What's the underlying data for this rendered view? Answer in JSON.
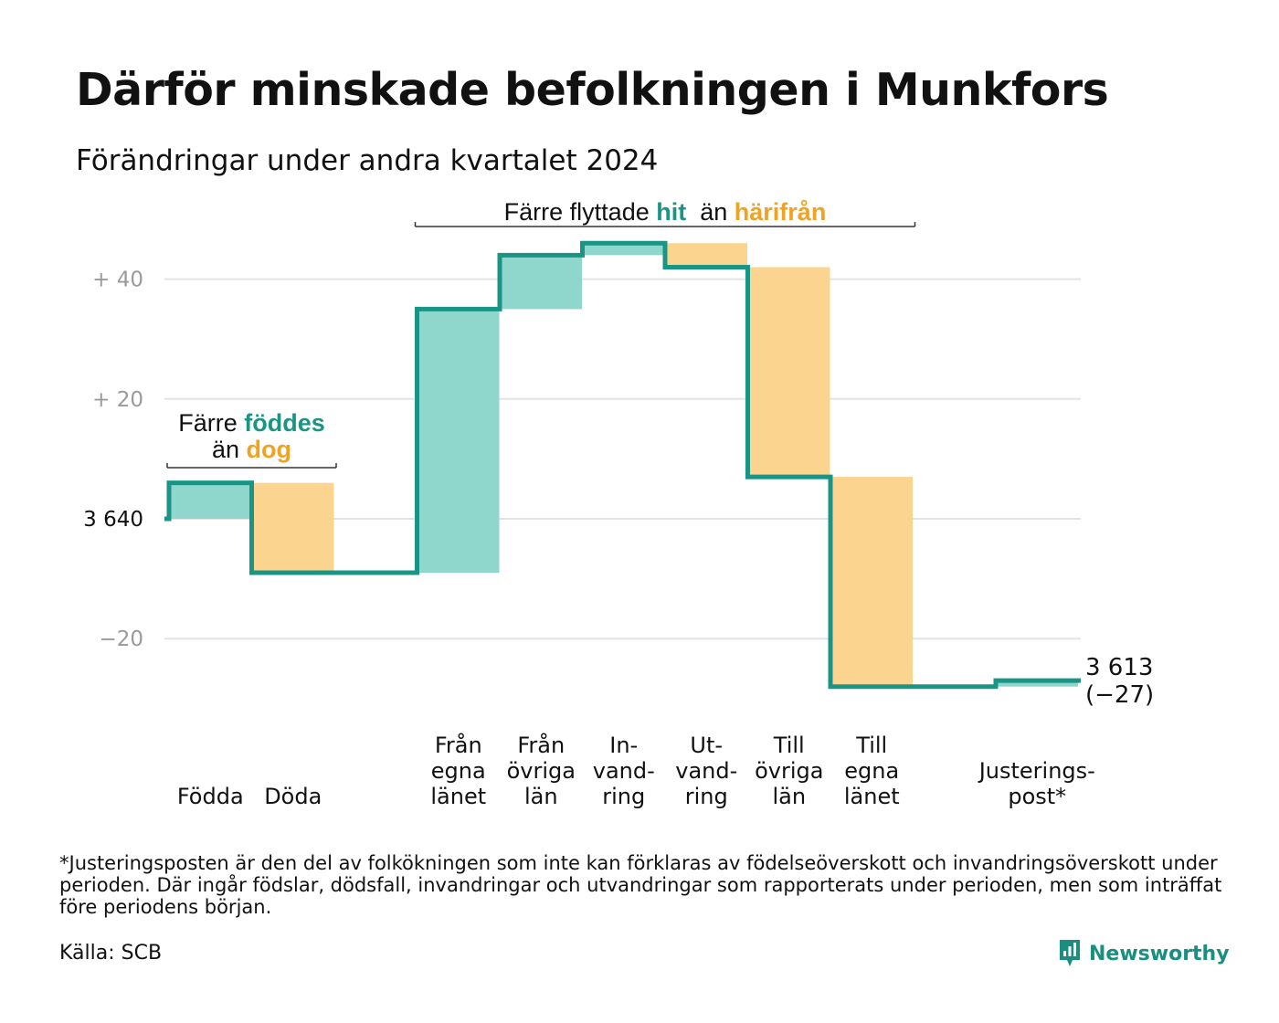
{
  "title": "Därför minskade befolkningen i Munkfors",
  "subtitle": "Förändringar under andra kvartalet 2024",
  "colors": {
    "increase": "#8fd6cc",
    "decrease": "#fbd58f",
    "line": "#1a9585",
    "grid": "#e3e3e3",
    "teal_text": "#1a9585",
    "orange_text": "#f0a322"
  },
  "chart_data": {
    "type": "waterfall",
    "start_value": 3640,
    "end_value": 3613,
    "ylim": [
      -32,
      46
    ],
    "y_ticks": [
      {
        "value": 40,
        "label": "+  40"
      },
      {
        "value": 20,
        "label": "+  20"
      },
      {
        "value": 0,
        "label": "3  640"
      },
      {
        "value": -20,
        "label": "−20"
      }
    ],
    "grid": true,
    "steps": [
      {
        "label": [
          "Födda"
        ],
        "change": 6,
        "direction": "increase"
      },
      {
        "label": [
          "Döda"
        ],
        "change": -15,
        "direction": "decrease"
      },
      {
        "label": [],
        "change": 0,
        "direction": "none"
      },
      {
        "label": [
          "Från",
          "egna",
          "länet"
        ],
        "change": 44,
        "direction": "increase"
      },
      {
        "label": [
          "Från",
          "övriga",
          "län"
        ],
        "change": 9,
        "direction": "increase"
      },
      {
        "label": [
          "In-",
          "vand-",
          "ring"
        ],
        "change": 2,
        "direction": "increase"
      },
      {
        "label": [
          "Ut-",
          "vand-",
          "ring"
        ],
        "change": -4,
        "direction": "decrease"
      },
      {
        "label": [
          "Till",
          "övriga",
          "län"
        ],
        "change": -35,
        "direction": "decrease"
      },
      {
        "label": [
          "Till",
          "egna",
          "länet"
        ],
        "change": -35,
        "direction": "decrease"
      },
      {
        "label": [],
        "change": 0,
        "direction": "none"
      },
      {
        "label": [
          "Justerings-",
          "post*"
        ],
        "change": 1,
        "direction": "increase"
      }
    ],
    "end_label": [
      "3 613",
      "(−27)"
    ],
    "annotations": [
      {
        "parts": [
          {
            "text": "Färre ",
            "style": "plain"
          },
          {
            "text": "föddes",
            "style": "teal"
          }
        ],
        "parts2": [
          {
            "text": "än ",
            "style": "plain"
          },
          {
            "text": "dog",
            "style": "orange"
          }
        ],
        "from_step": 0,
        "to_step": 1
      },
      {
        "parts": [
          {
            "text": "Färre flyttade ",
            "style": "plain"
          },
          {
            "text": "hit",
            "style": "teal"
          },
          {
            "text": "  än ",
            "style": "plain"
          },
          {
            "text": "härifrån",
            "style": "orange"
          }
        ],
        "from_step": 3,
        "to_step": 8
      }
    ]
  },
  "footnote": "*Justeringsposten är den del av folkökningen som inte kan förklaras av födelseöverskott och invandringsöverskott under perioden. Där ingår födslar, dödsfall, invandringar och utvandringar som rapporterats under perioden, men som inträffat före periodens början.",
  "source": "Källa: SCB",
  "brand": {
    "name": "Newsworthy",
    "icon": "newsworthy-logo-icon"
  }
}
